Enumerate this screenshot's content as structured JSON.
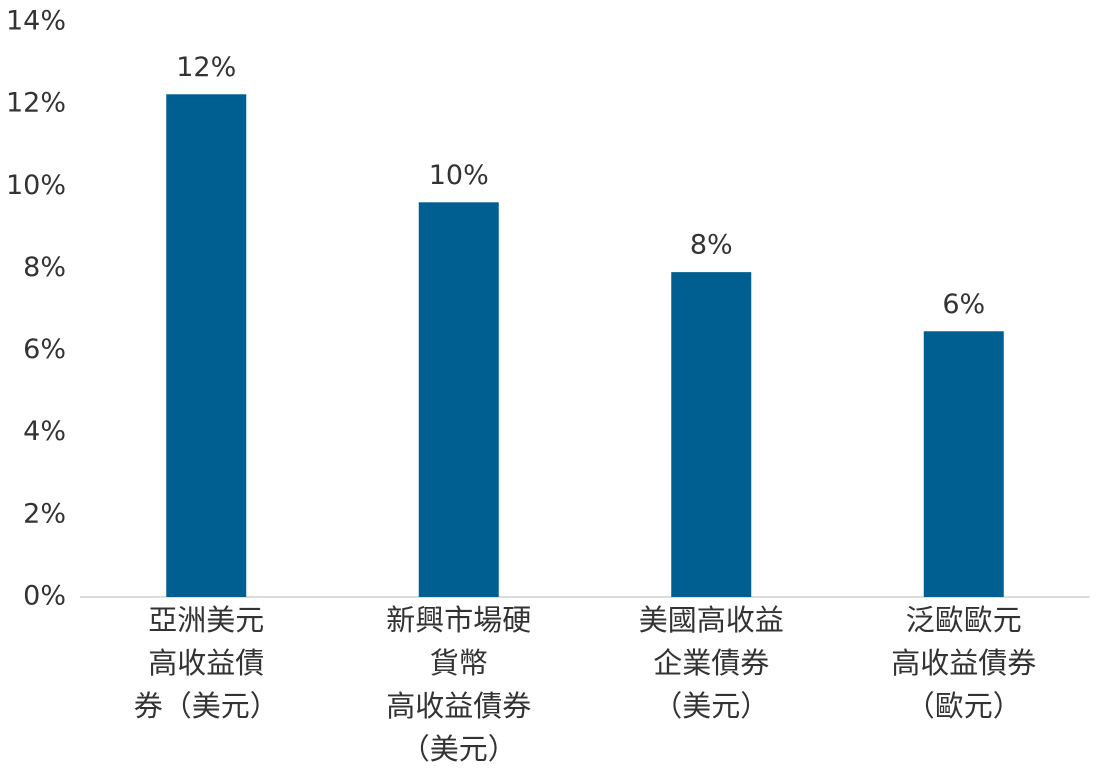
{
  "chart_data": {
    "type": "bar",
    "categories": [
      [
        "亞洲美元",
        "高收益債",
        "券（美元）"
      ],
      [
        "新興市場硬",
        "貨幣",
        "高收益債券",
        "（美元）"
      ],
      [
        "美國高收益",
        "企業債券",
        "（美元）"
      ],
      [
        "泛歐歐元",
        "高收益債券",
        "（歐元）"
      ]
    ],
    "values": [
      12.24,
      9.61,
      7.91,
      6.47
    ],
    "value_labels": [
      "12%",
      "10%",
      "8%",
      "6%"
    ],
    "color": "#005f91",
    "ylim": [
      0,
      14
    ],
    "yticks": [
      {
        "value": 0,
        "label": "0%"
      },
      {
        "value": 2,
        "label": "2%"
      },
      {
        "value": 4,
        "label": "4%"
      },
      {
        "value": 6,
        "label": "6%"
      },
      {
        "value": 8,
        "label": "8%"
      },
      {
        "value": 10,
        "label": "10%"
      },
      {
        "value": 12,
        "label": "12%"
      },
      {
        "value": 14,
        "label": "14%"
      }
    ],
    "grid": false
  }
}
